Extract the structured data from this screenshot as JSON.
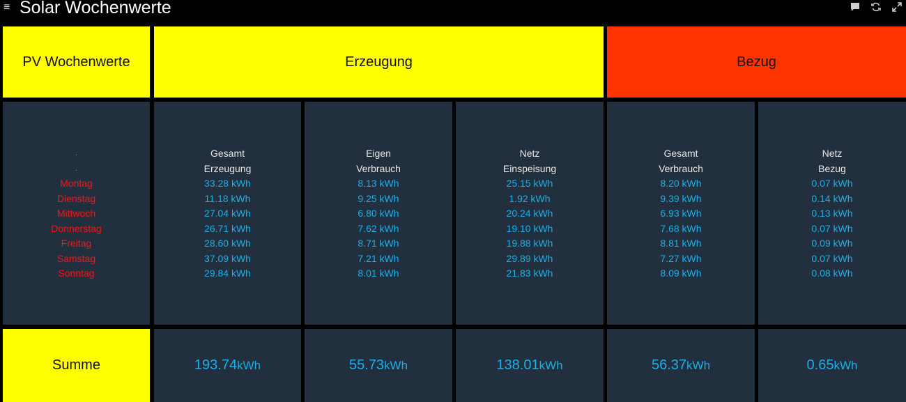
{
  "header": {
    "title": "Solar Wochenwerte",
    "icons": [
      "menu-icon",
      "chat-icon",
      "refresh-icon",
      "fullscreen-icon"
    ]
  },
  "top": {
    "pv": "PV Wochenwerte",
    "erzeugung": "Erzeugung",
    "bezug": "Bezug"
  },
  "days": {
    "dot1": ".",
    "dot2": ".",
    "items": [
      "Montag",
      "Dienstag",
      "Mittwoch",
      "Donnerstag",
      "Freitag",
      "Samstag",
      "Sonntag"
    ]
  },
  "columns": [
    {
      "label1": "Gesamt",
      "label2": "Erzeugung",
      "values": [
        "33.28 kWh",
        "11.18 kWh",
        "27.04 kWh",
        "26.71 kWh",
        "28.60 kWh",
        "37.09 kWh",
        "29.84 kWh"
      ]
    },
    {
      "label1": "Eigen",
      "label2": "Verbrauch",
      "values": [
        "8.13 kWh",
        "9.25 kWh",
        "6.80 kWh",
        "7.62 kWh",
        "8.71 kWh",
        "7.21 kWh",
        "8.01 kWh"
      ]
    },
    {
      "label1": "Netz",
      "label2": "Einspeisung",
      "values": [
        "25.15 kWh",
        "1.92 kWh",
        "20.24 kWh",
        "19.10 kWh",
        "19.88 kWh",
        "29.89 kWh",
        "21.83 kWh"
      ]
    },
    {
      "label1": "Gesamt",
      "label2": "Verbrauch",
      "values": [
        "8.20 kWh",
        "9.39 kWh",
        "6.93 kWh",
        "7.68 kWh",
        "8.81 kWh",
        "7.27 kWh",
        "8.09 kWh"
      ]
    },
    {
      "label1": "Netz",
      "label2": "Bezug",
      "values": [
        "0.07 kWh",
        "0.14 kWh",
        "0.13 kWh",
        "0.07 kWh",
        "0.09 kWh",
        "0.07 kWh",
        "0.08 kWh"
      ]
    }
  ],
  "summe": {
    "label": "Summe",
    "unit": "kWh",
    "values": [
      "193.74",
      "55.73",
      "138.01",
      "56.37",
      "0.65"
    ]
  },
  "colors": {
    "yellow": "#ffff00",
    "red": "#ff3300",
    "panel": "#222f3e",
    "value": "#1ab1ea",
    "day": "#ff1111"
  }
}
